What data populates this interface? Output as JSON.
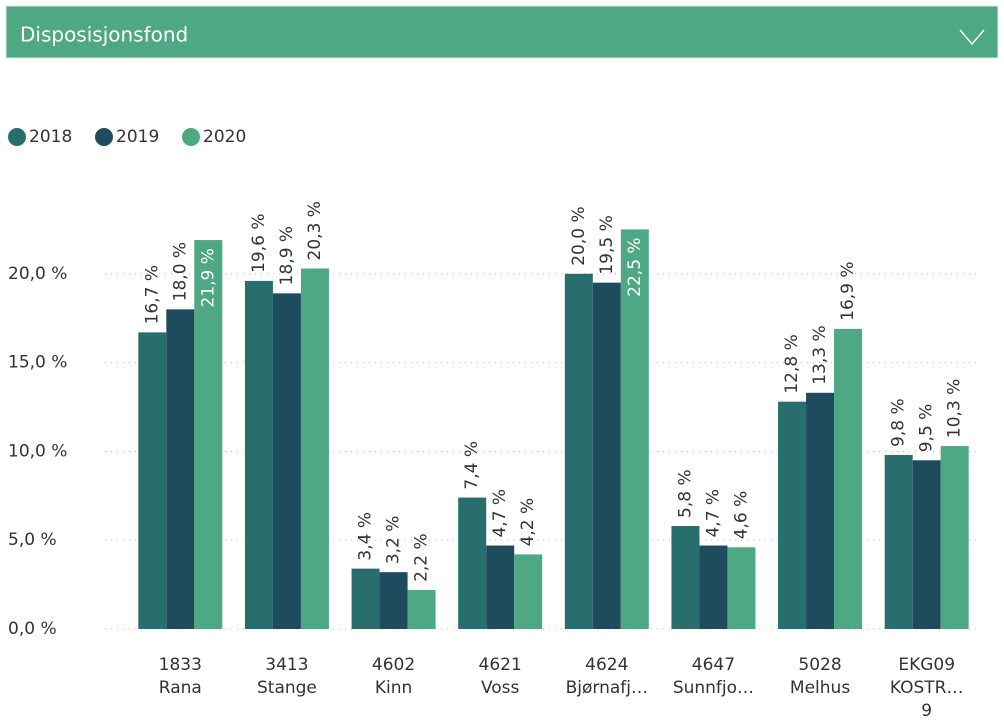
{
  "header": {
    "title": "Disposisjonsfond"
  },
  "chart_data": {
    "type": "bar",
    "categories": [
      [
        "1833",
        "Rana"
      ],
      [
        "3413",
        "Stange"
      ],
      [
        "4602",
        "Kinn"
      ],
      [
        "4621",
        "Voss"
      ],
      [
        "4624",
        "Bjørnafj…"
      ],
      [
        "4647",
        "Sunnfjo…"
      ],
      [
        "5028",
        "Melhus"
      ],
      [
        "EKG09",
        "KOSTR…",
        "9"
      ]
    ],
    "series": [
      {
        "name": "2018",
        "color": "#276e6d",
        "values": [
          16.7,
          19.6,
          3.4,
          7.4,
          20.0,
          5.8,
          12.8,
          9.8
        ],
        "value_labels": [
          "16,7 %",
          "19,6 %",
          "3,4 %",
          "7,4 %",
          "20,0 %",
          "5,8 %",
          "12,8 %",
          "9,8 %"
        ]
      },
      {
        "name": "2019",
        "color": "#1f4b5e",
        "values": [
          18.0,
          18.9,
          3.2,
          4.7,
          19.5,
          4.7,
          13.3,
          9.5
        ],
        "value_labels": [
          "18,0 %",
          "18,9 %",
          "3,2 %",
          "4,7 %",
          "19,5 %",
          "4,7 %",
          "13,3 %",
          "9,5 %"
        ]
      },
      {
        "name": "2020",
        "color": "#4fa884",
        "values": [
          21.9,
          20.3,
          2.2,
          4.2,
          22.5,
          4.6,
          16.9,
          10.3
        ],
        "value_labels": [
          "21,9 %",
          "20,3 %",
          "2,2 %",
          "4,2 %",
          "22,5 %",
          "4,6 %",
          "16,9 %",
          "10,3 %"
        ]
      }
    ],
    "ylim": [
      0,
      25
    ],
    "yticks": [
      {
        "value": 0,
        "label": "0,0 %"
      },
      {
        "value": 5,
        "label": "5,0 %"
      },
      {
        "value": 10,
        "label": "10,0 %"
      },
      {
        "value": 15,
        "label": "15,0 %"
      },
      {
        "value": 20,
        "label": "20,0 %"
      }
    ],
    "grid": true,
    "legend": "top-left"
  }
}
